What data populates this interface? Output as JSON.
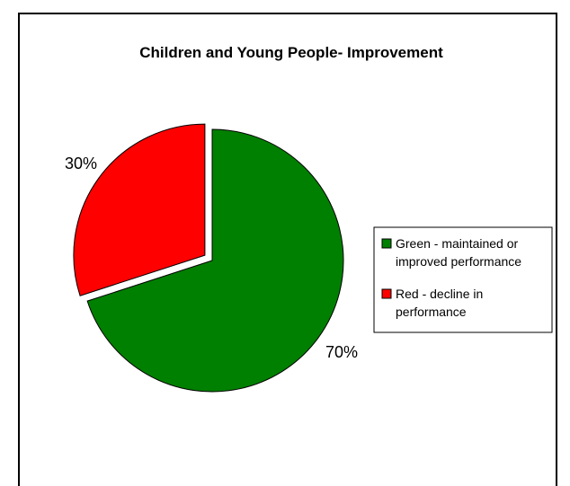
{
  "chart_data": {
    "type": "pie",
    "title": "Children and Young People- Improvement",
    "categories": [
      "Green - maintained or improved performance",
      "Red - decline in performance"
    ],
    "values": [
      70,
      30
    ],
    "data_labels": [
      "70%",
      "30%"
    ],
    "legend_lines": [
      [
        "Green - maintained or",
        "improved performance"
      ],
      [
        "Red - decline in",
        "performance"
      ]
    ],
    "colors": [
      "#008000",
      "#ff0000"
    ],
    "exploded": [
      false,
      true
    ],
    "legend_position": "right"
  }
}
